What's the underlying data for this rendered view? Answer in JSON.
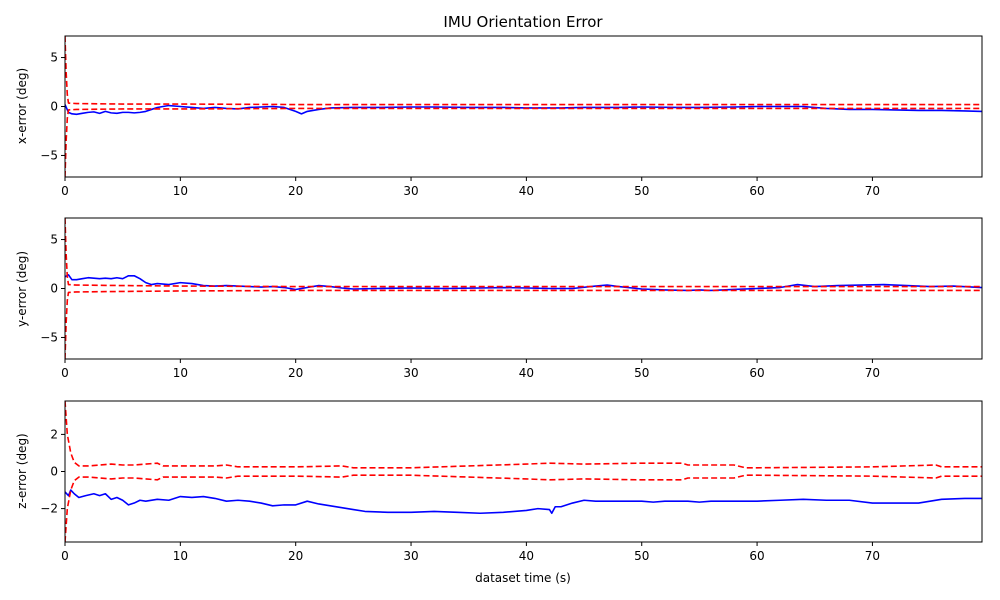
{
  "title": "IMU Orientation Error",
  "xlabel": "dataset time (s)",
  "colors": {
    "error": "#0000ff",
    "bound": "#ff0000",
    "axes": "#000000"
  },
  "chart_data": [
    {
      "type": "line",
      "ylabel": "x-error (deg)",
      "xlim": [
        0,
        79.5
      ],
      "ylim": [
        -7.2,
        7.2
      ],
      "xticks": [
        0,
        10,
        20,
        30,
        40,
        50,
        60,
        70
      ],
      "yticks": [
        -5,
        0,
        5
      ],
      "series": [
        {
          "name": "error",
          "style": "solid",
          "color": "#0000ff",
          "x": [
            0,
            0.3,
            0.6,
            1,
            1.5,
            2,
            2.5,
            3,
            3.5,
            4,
            4.5,
            5,
            5.5,
            6,
            6.5,
            7,
            7.5,
            8,
            9,
            10,
            11,
            12,
            13,
            14,
            15,
            16,
            17,
            18,
            19,
            20,
            20.5,
            21,
            22,
            23,
            25,
            27,
            30,
            32,
            35,
            38,
            40,
            43,
            45,
            48,
            50,
            53,
            55,
            58,
            60,
            62,
            64,
            66,
            68,
            70,
            72,
            74,
            76,
            78,
            79.5
          ],
          "y": [
            0.2,
            -0.6,
            -0.75,
            -0.8,
            -0.7,
            -0.6,
            -0.55,
            -0.7,
            -0.5,
            -0.65,
            -0.7,
            -0.6,
            -0.6,
            -0.65,
            -0.6,
            -0.5,
            -0.3,
            -0.1,
            0.1,
            0.0,
            -0.1,
            -0.2,
            -0.1,
            -0.2,
            -0.25,
            -0.1,
            -0.05,
            0.0,
            -0.1,
            -0.5,
            -0.75,
            -0.5,
            -0.3,
            -0.15,
            -0.1,
            -0.1,
            -0.05,
            -0.05,
            -0.1,
            -0.1,
            -0.15,
            -0.15,
            -0.1,
            -0.1,
            -0.05,
            -0.1,
            -0.1,
            -0.05,
            0.0,
            0.0,
            0.0,
            -0.2,
            -0.3,
            -0.3,
            -0.35,
            -0.4,
            -0.4,
            -0.45,
            -0.5
          ]
        },
        {
          "name": "upper bound",
          "style": "dashed",
          "color": "#ff0000",
          "x": [
            0,
            0.1,
            0.2,
            0.3,
            1,
            5,
            10,
            20,
            30,
            40,
            50,
            60,
            70,
            79.5
          ],
          "y": [
            7.2,
            3.5,
            1.2,
            0.35,
            0.3,
            0.25,
            0.25,
            0.2,
            0.2,
            0.2,
            0.2,
            0.2,
            0.2,
            0.2
          ]
        },
        {
          "name": "lower bound",
          "style": "dashed",
          "color": "#ff0000",
          "x": [
            0,
            0.1,
            0.2,
            0.3,
            1,
            5,
            10,
            20,
            30,
            40,
            50,
            60,
            70,
            79.5
          ],
          "y": [
            -7.2,
            -3.5,
            -1.2,
            -0.35,
            -0.3,
            -0.25,
            -0.25,
            -0.2,
            -0.2,
            -0.2,
            -0.2,
            -0.2,
            -0.2,
            -0.2
          ]
        }
      ]
    },
    {
      "type": "line",
      "ylabel": "y-error (deg)",
      "xlim": [
        0,
        79.5
      ],
      "ylim": [
        -7.2,
        7.2
      ],
      "xticks": [
        0,
        10,
        20,
        30,
        40,
        50,
        60,
        70
      ],
      "yticks": [
        -5,
        0,
        5
      ],
      "series": [
        {
          "name": "error",
          "style": "solid",
          "color": "#0000ff",
          "x": [
            0,
            0.3,
            0.6,
            1,
            1.5,
            2,
            3,
            3.5,
            4,
            4.5,
            5,
            5.5,
            6,
            6.5,
            7,
            7.5,
            8,
            9,
            10,
            11,
            12,
            13,
            14,
            15,
            16,
            17,
            18,
            19,
            20,
            21,
            22,
            23,
            24,
            25,
            27,
            30,
            33,
            36,
            38,
            40,
            42,
            44,
            46,
            47,
            48,
            50,
            52,
            54,
            55,
            56,
            58,
            60,
            62,
            63.5,
            65,
            67,
            69,
            71,
            73,
            75,
            77,
            79.5
          ],
          "y": [
            1.2,
            1.4,
            0.9,
            0.9,
            1.0,
            1.1,
            1.0,
            1.05,
            1.0,
            1.1,
            1.0,
            1.3,
            1.3,
            1.0,
            0.6,
            0.4,
            0.5,
            0.4,
            0.6,
            0.5,
            0.3,
            0.25,
            0.3,
            0.25,
            0.2,
            0.15,
            0.2,
            0.1,
            -0.1,
            0.1,
            0.3,
            0.2,
            0.05,
            -0.05,
            0.0,
            0.05,
            0.0,
            0.05,
            0.1,
            0.05,
            0.0,
            0.0,
            0.25,
            0.35,
            0.2,
            -0.05,
            -0.15,
            -0.2,
            -0.15,
            -0.2,
            -0.1,
            0.0,
            0.1,
            0.4,
            0.2,
            0.3,
            0.35,
            0.4,
            0.3,
            0.2,
            0.25,
            0.1
          ]
        },
        {
          "name": "upper bound",
          "style": "dashed",
          "color": "#ff0000",
          "x": [
            0,
            0.1,
            0.2,
            0.3,
            1,
            5,
            10,
            20,
            30,
            40,
            50,
            60,
            70,
            79.5
          ],
          "y": [
            7.2,
            3.5,
            1.2,
            0.4,
            0.35,
            0.3,
            0.25,
            0.2,
            0.2,
            0.2,
            0.2,
            0.2,
            0.2,
            0.2
          ]
        },
        {
          "name": "lower bound",
          "style": "dashed",
          "color": "#ff0000",
          "x": [
            0,
            0.1,
            0.2,
            0.3,
            1,
            5,
            10,
            20,
            30,
            40,
            50,
            60,
            70,
            79.5
          ],
          "y": [
            -7.2,
            -3.5,
            -1.2,
            -0.4,
            -0.35,
            -0.3,
            -0.25,
            -0.2,
            -0.2,
            -0.2,
            -0.2,
            -0.2,
            -0.2,
            -0.2
          ]
        }
      ]
    },
    {
      "type": "line",
      "ylabel": "z-error (deg)",
      "xlim": [
        0,
        79.5
      ],
      "ylim": [
        -3.8,
        3.8
      ],
      "xticks": [
        0,
        10,
        20,
        30,
        40,
        50,
        60,
        70
      ],
      "yticks": [
        -2,
        0,
        2
      ],
      "series": [
        {
          "name": "error",
          "style": "solid",
          "color": "#0000ff",
          "x": [
            0,
            0.3,
            0.5,
            0.8,
            1.2,
            1.8,
            2.5,
            3,
            3.5,
            4,
            4.5,
            5,
            5.5,
            6,
            6.5,
            7,
            8,
            9,
            10,
            11,
            12,
            13,
            14,
            15,
            16,
            17,
            18,
            19,
            20,
            21,
            22,
            23,
            24,
            25,
            26,
            28,
            30,
            32,
            34,
            36,
            38,
            40,
            41,
            42,
            42.2,
            42.5,
            43,
            44,
            45,
            46,
            47,
            48,
            50,
            51,
            52,
            54,
            55,
            56,
            58,
            60,
            62,
            64,
            66,
            68,
            70,
            72,
            74,
            76,
            78,
            79.5
          ],
          "y": [
            -1.1,
            -1.3,
            -1.0,
            -1.2,
            -1.4,
            -1.3,
            -1.2,
            -1.3,
            -1.2,
            -1.5,
            -1.4,
            -1.55,
            -1.8,
            -1.7,
            -1.55,
            -1.6,
            -1.5,
            -1.55,
            -1.35,
            -1.4,
            -1.35,
            -1.45,
            -1.6,
            -1.55,
            -1.6,
            -1.7,
            -1.85,
            -1.8,
            -1.8,
            -1.6,
            -1.75,
            -1.85,
            -1.95,
            -2.05,
            -2.15,
            -2.2,
            -2.2,
            -2.15,
            -2.2,
            -2.25,
            -2.2,
            -2.1,
            -2.0,
            -2.05,
            -2.25,
            -1.9,
            -1.9,
            -1.7,
            -1.55,
            -1.6,
            -1.6,
            -1.6,
            -1.6,
            -1.65,
            -1.6,
            -1.6,
            -1.65,
            -1.6,
            -1.6,
            -1.6,
            -1.55,
            -1.5,
            -1.55,
            -1.55,
            -1.7,
            -1.7,
            -1.7,
            -1.5,
            -1.45,
            -1.45
          ]
        },
        {
          "name": "upper bound",
          "style": "dashed",
          "color": "#ff0000",
          "x": [
            0,
            0.2,
            0.5,
            0.8,
            1.2,
            2,
            3,
            4,
            5,
            6,
            7,
            8,
            8.5,
            10,
            11,
            12,
            13,
            14,
            15,
            20,
            24,
            25,
            30,
            35,
            40,
            42,
            45,
            50,
            53.5,
            54,
            58,
            59,
            60,
            70,
            75.5,
            76,
            79.5
          ],
          "y": [
            3.8,
            2.0,
            1.0,
            0.5,
            0.3,
            0.3,
            0.35,
            0.4,
            0.35,
            0.35,
            0.4,
            0.45,
            0.3,
            0.3,
            0.3,
            0.3,
            0.3,
            0.35,
            0.25,
            0.25,
            0.3,
            0.2,
            0.2,
            0.3,
            0.4,
            0.45,
            0.4,
            0.45,
            0.45,
            0.35,
            0.35,
            0.2,
            0.2,
            0.25,
            0.35,
            0.25,
            0.25
          ]
        },
        {
          "name": "lower bound",
          "style": "dashed",
          "color": "#ff0000",
          "x": [
            0,
            0.2,
            0.5,
            0.8,
            1.2,
            2,
            3,
            4,
            5,
            6,
            7,
            8,
            8.5,
            10,
            11,
            12,
            13,
            14,
            15,
            20,
            24,
            25,
            30,
            35,
            40,
            42,
            45,
            50,
            53.5,
            54,
            58,
            59,
            60,
            70,
            75.5,
            76,
            79.5
          ],
          "y": [
            -3.8,
            -2.0,
            -1.0,
            -0.5,
            -0.3,
            -0.3,
            -0.35,
            -0.4,
            -0.35,
            -0.35,
            -0.4,
            -0.45,
            -0.3,
            -0.3,
            -0.3,
            -0.3,
            -0.3,
            -0.35,
            -0.25,
            -0.25,
            -0.3,
            -0.2,
            -0.2,
            -0.3,
            -0.4,
            -0.45,
            -0.4,
            -0.45,
            -0.45,
            -0.35,
            -0.35,
            -0.2,
            -0.2,
            -0.25,
            -0.35,
            -0.25,
            -0.25
          ]
        }
      ]
    }
  ]
}
